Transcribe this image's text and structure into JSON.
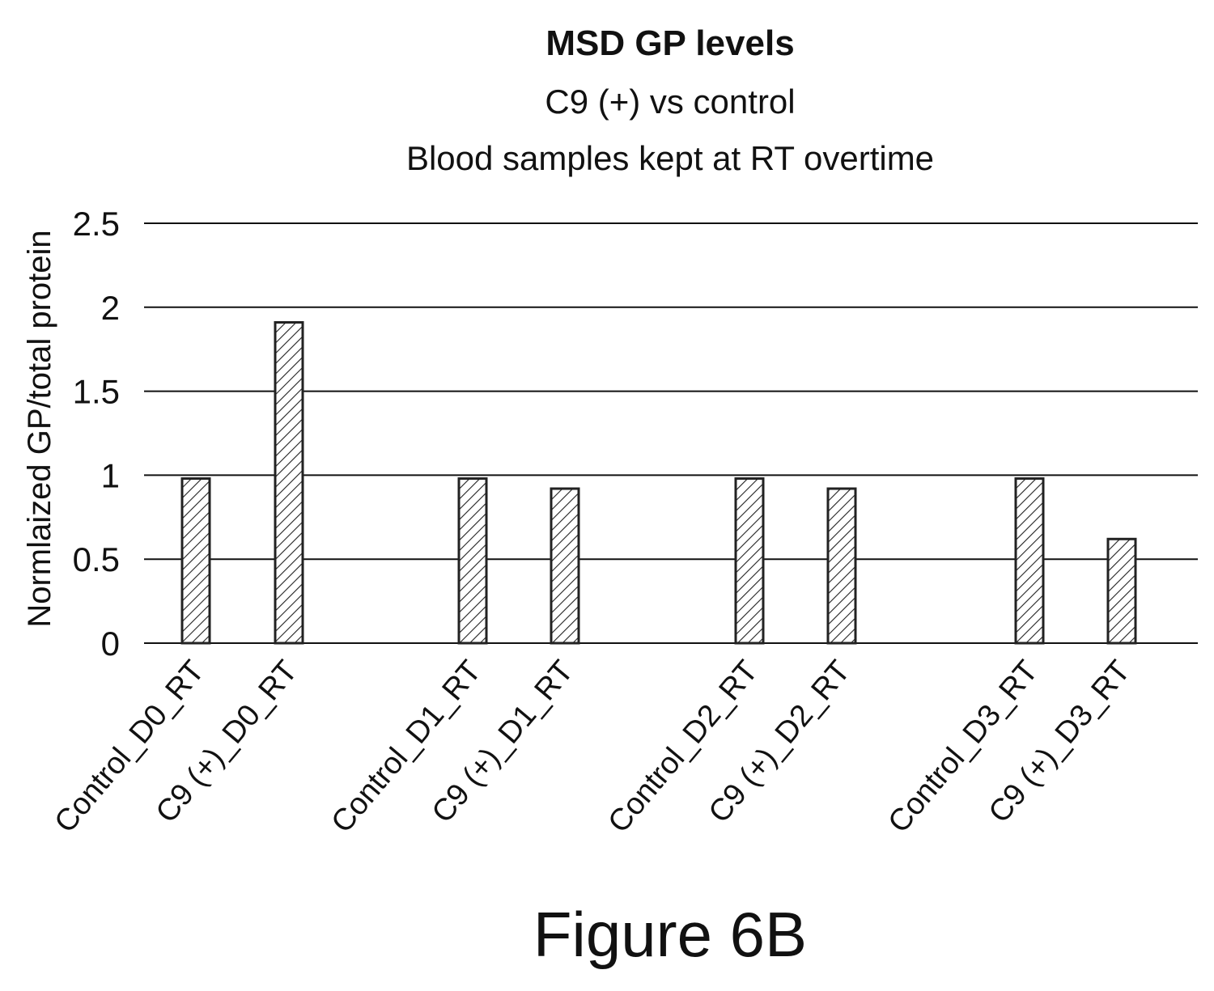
{
  "chart_data": {
    "type": "bar",
    "title": "MSD GP levels",
    "subtitle": [
      "C9 (+) vs control",
      "Blood samples kept at RT overtime"
    ],
    "ylabel": "Normlaized GP/total protein",
    "xlabel": "",
    "ylim": [
      0,
      2.5
    ],
    "yticks": [
      "0",
      "0.5",
      "1",
      "1.5",
      "2",
      "2.5"
    ],
    "grid": true,
    "legend": "none",
    "categories": [
      "Control_D0_RT",
      "C9 (+)_D0_RT",
      "Control_D1_RT",
      "C9 (+)_D1_RT",
      "Control_D2_RT",
      "C9 (+)_D2_RT",
      "Control_D3_RT",
      "C9 (+)_D3_RT"
    ],
    "values": [
      0.98,
      1.91,
      0.98,
      0.92,
      0.98,
      0.92,
      0.98,
      0.62
    ],
    "bar_pattern": "diagonal-hatch",
    "bar_color": "#222222"
  },
  "caption": "Figure 6B"
}
